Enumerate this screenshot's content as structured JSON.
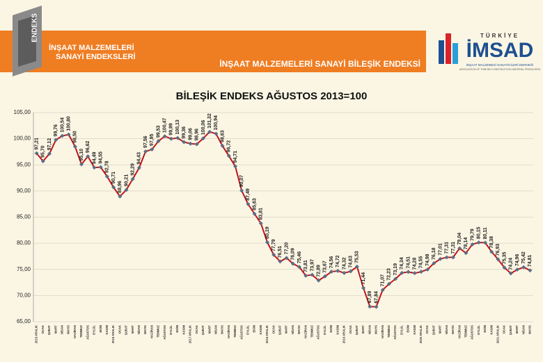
{
  "header": {
    "logo_text": "ENDEKS",
    "left_title_1": "İNŞAAT MALZEMELERİ",
    "left_title_2": "SANAYİ ENDEKSLERİ",
    "banner_title": "İNŞAAT MALZEMELERİ SANAYİ BİLEŞİK ENDEKSİ",
    "brand_top": "TÜRKİYE",
    "brand": "İMSAD",
    "brand_sub_1": "İNŞAAT MALZEMESİ SANAYİCİLERİ DERNEĞİ",
    "brand_sub_2": "ASSOCIATION OF TURKISH CONSTRUCTION MATERIAL PRODUCERS"
  },
  "chart_data": {
    "type": "line",
    "title": "BİLEŞİK ENDEKS AĞUSTOS 2013=100",
    "categories": [
      "2015 ARALIK",
      "OCAK",
      "ŞUBAT",
      "MART",
      "NİSAN",
      "MAYIS",
      "HAZİRAN",
      "TEMMUZ",
      "AĞUSTOS",
      "EYLÜL",
      "EKİM",
      "KASIM",
      "2016 ARALIK",
      "OCAK",
      "ŞUBAT",
      "MART",
      "NİSAN",
      "MAYIS",
      "HAZİRAN",
      "TEMMUZ",
      "AĞUSTOS",
      "EYLÜL",
      "EKİM",
      "KASIM",
      "2017 ARALIK",
      "OCAK",
      "ŞUBAT",
      "MART",
      "NİSAN",
      "MAYIS",
      "HAZİRAN",
      "TEMMUZ",
      "AĞUSTOS",
      "EYLÜL",
      "EKİM",
      "KASIM",
      "2018 ARALIK",
      "OCAK",
      "ŞUBAT",
      "MART",
      "NİSAN",
      "MAYIS",
      "HAZİRAN",
      "TEMMUZ",
      "AĞUSTOS",
      "EYLÜL",
      "EKİM",
      "KASIM",
      "2019 ARALIK",
      "OCAK",
      "ŞUBAT",
      "MART",
      "NİSAN",
      "MAYIS",
      "HAZİRAN",
      "TEMMUZ",
      "AĞUSTOS",
      "EYLÜL",
      "EKİM",
      "KASIM",
      "2020 ARALIK",
      "OCAK",
      "ŞUBAT",
      "MART",
      "NİSAN",
      "MAYIS",
      "HAZİRAN",
      "TEMMUZ",
      "AĞUSTOS",
      "EYLÜL",
      "EKİM",
      "KASIM",
      "2021 ARALIK",
      "OCAK",
      "ŞUBAT",
      "MART",
      "NİSAN",
      "MAYIS"
    ],
    "series": [
      {
        "name": "Bileşik Endeks",
        "color": "#c0141c",
        "marker_color": "#5a6f86",
        "values": [
          97.21,
          95.7,
          97.12,
          99.76,
          100.54,
          100.8,
          98.5,
          95.1,
          96.62,
          94.49,
          94.55,
          92.78,
          90.71,
          88.96,
          90.21,
          92.29,
          94.43,
          97.56,
          97.95,
          99.53,
          100.47,
          99.99,
          100.13,
          99.36,
          99.06,
          98.96,
          100.06,
          101.32,
          100.94,
          98.63,
          96.72,
          94.71,
          90.07,
          87.49,
          85.63,
          83.81,
          80.19,
          77.79,
          76.51,
          77.2,
          76.09,
          75.46,
          73.81,
          73.97,
          72.89,
          73.67,
          74.56,
          74.72,
          74.32,
          74.63,
          75.53,
          71.44,
          67.89,
          67.84,
          71.07,
          72.23,
          73.19,
          74.34,
          74.51,
          74.28,
          74.55,
          74.98,
          76.18,
          77.01,
          77.31,
          77.31,
          79.04,
          78.14,
          79.79,
          80.15,
          80.11,
          78.38,
          76.93,
          75.35,
          74.24,
          74.96,
          75.42,
          74.81
        ],
        "value_labels": [
          "97,21",
          "95,70",
          "97,12",
          "99,76",
          "100,54",
          "100,80",
          "98,50",
          "95,10",
          "96,62",
          "94,49",
          "94,55",
          "92,78",
          "90,71",
          "88,96",
          "90,21",
          "92,29",
          "94,43",
          "97,56",
          "97,95",
          "99,53",
          "100,47",
          "99,99",
          "100,13",
          "99,36",
          "99,06",
          "98,96",
          "100,06",
          "101,32",
          "100,94",
          "98,63",
          "96,72",
          "94,71",
          "90,07",
          "87,49",
          "85,63",
          "83,81",
          "80,19",
          "77,79",
          "76,51",
          "77,20",
          "76,09",
          "75,46",
          "73,81",
          "73,97",
          "72,89",
          "73,67",
          "74,56",
          "74,72",
          "74,32",
          "74,63",
          "75,53",
          "71,44",
          "67,89",
          "67,84",
          "71,07",
          "72,23",
          "73,19",
          "74,34",
          "74,51",
          "74,28",
          "74,55",
          "74,98",
          "76,18",
          "77,01",
          "77,31",
          "77,31",
          "79,04",
          "78,14",
          "79,79",
          "80,15",
          "80,11",
          "78,38",
          "76,93",
          "75,35",
          "74,24",
          "74,96",
          "75,42",
          "74,81"
        ]
      }
    ],
    "ylim": [
      65,
      105
    ],
    "yticks": [
      {
        "value": 65,
        "label": "65,00"
      },
      {
        "value": 70,
        "label": "70,00"
      },
      {
        "value": 75,
        "label": "75,00"
      },
      {
        "value": 80,
        "label": "80,00"
      },
      {
        "value": 85,
        "label": "85,00"
      },
      {
        "value": 90,
        "label": "90,00"
      },
      {
        "value": 95,
        "label": "95,00"
      },
      {
        "value": 100,
        "label": "100,00"
      },
      {
        "value": 105,
        "label": "105,00"
      }
    ],
    "grid": true
  }
}
